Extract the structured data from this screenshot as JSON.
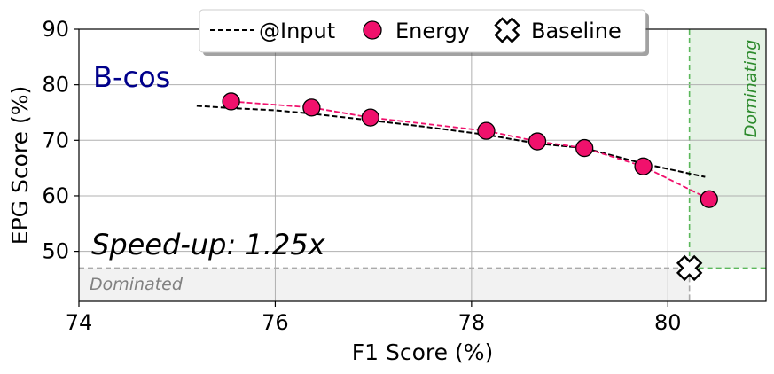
{
  "chart_data": {
    "type": "scatter",
    "title": "",
    "xlabel": "F1 Score (%)",
    "ylabel": "EPG Score (%)",
    "xlim": [
      74,
      81
    ],
    "ylim": [
      41,
      90
    ],
    "xticks": [
      74,
      76,
      78,
      80
    ],
    "yticks": [
      50,
      60,
      70,
      80,
      90
    ],
    "grid": true,
    "legend_position": "top-center",
    "model_label": "B-cos",
    "speedup_label": "Speed-up: 1.25x",
    "dominating_label": "Dominating",
    "dominated_label": "Dominated",
    "series": [
      {
        "name": "@Input",
        "kind": "dashed-line",
        "color": "#000000",
        "x": [
          75.2,
          75.55,
          76.0,
          76.37,
          76.97,
          77.5,
          78.15,
          78.67,
          79.15,
          79.75,
          80.38
        ],
        "y": [
          76.2,
          75.8,
          75.4,
          74.8,
          73.6,
          72.5,
          71.0,
          69.4,
          68.6,
          65.8,
          63.4
        ]
      },
      {
        "name": "Energy",
        "kind": "marker-line",
        "color": "#f0116c",
        "x": [
          75.55,
          76.37,
          76.97,
          78.15,
          78.67,
          79.15,
          79.75,
          80.42
        ],
        "y": [
          77.0,
          75.9,
          74.1,
          71.7,
          69.8,
          68.6,
          65.3,
          59.4
        ]
      },
      {
        "name": "Baseline",
        "kind": "cross-marker",
        "color": "#ffffff",
        "x": [
          80.22
        ],
        "y": [
          47.0
        ]
      }
    ],
    "colors": {
      "energy": "#f0116c",
      "dominating_fill": "#e5f2e5",
      "dominating_border": "#5cb85c",
      "dominating_text": "#2e8b2e",
      "dominated_fill": "#f2f2f2",
      "dominated_border": "#aaaaaa",
      "dominated_text": "#808080",
      "model_label": "#00008b"
    }
  }
}
